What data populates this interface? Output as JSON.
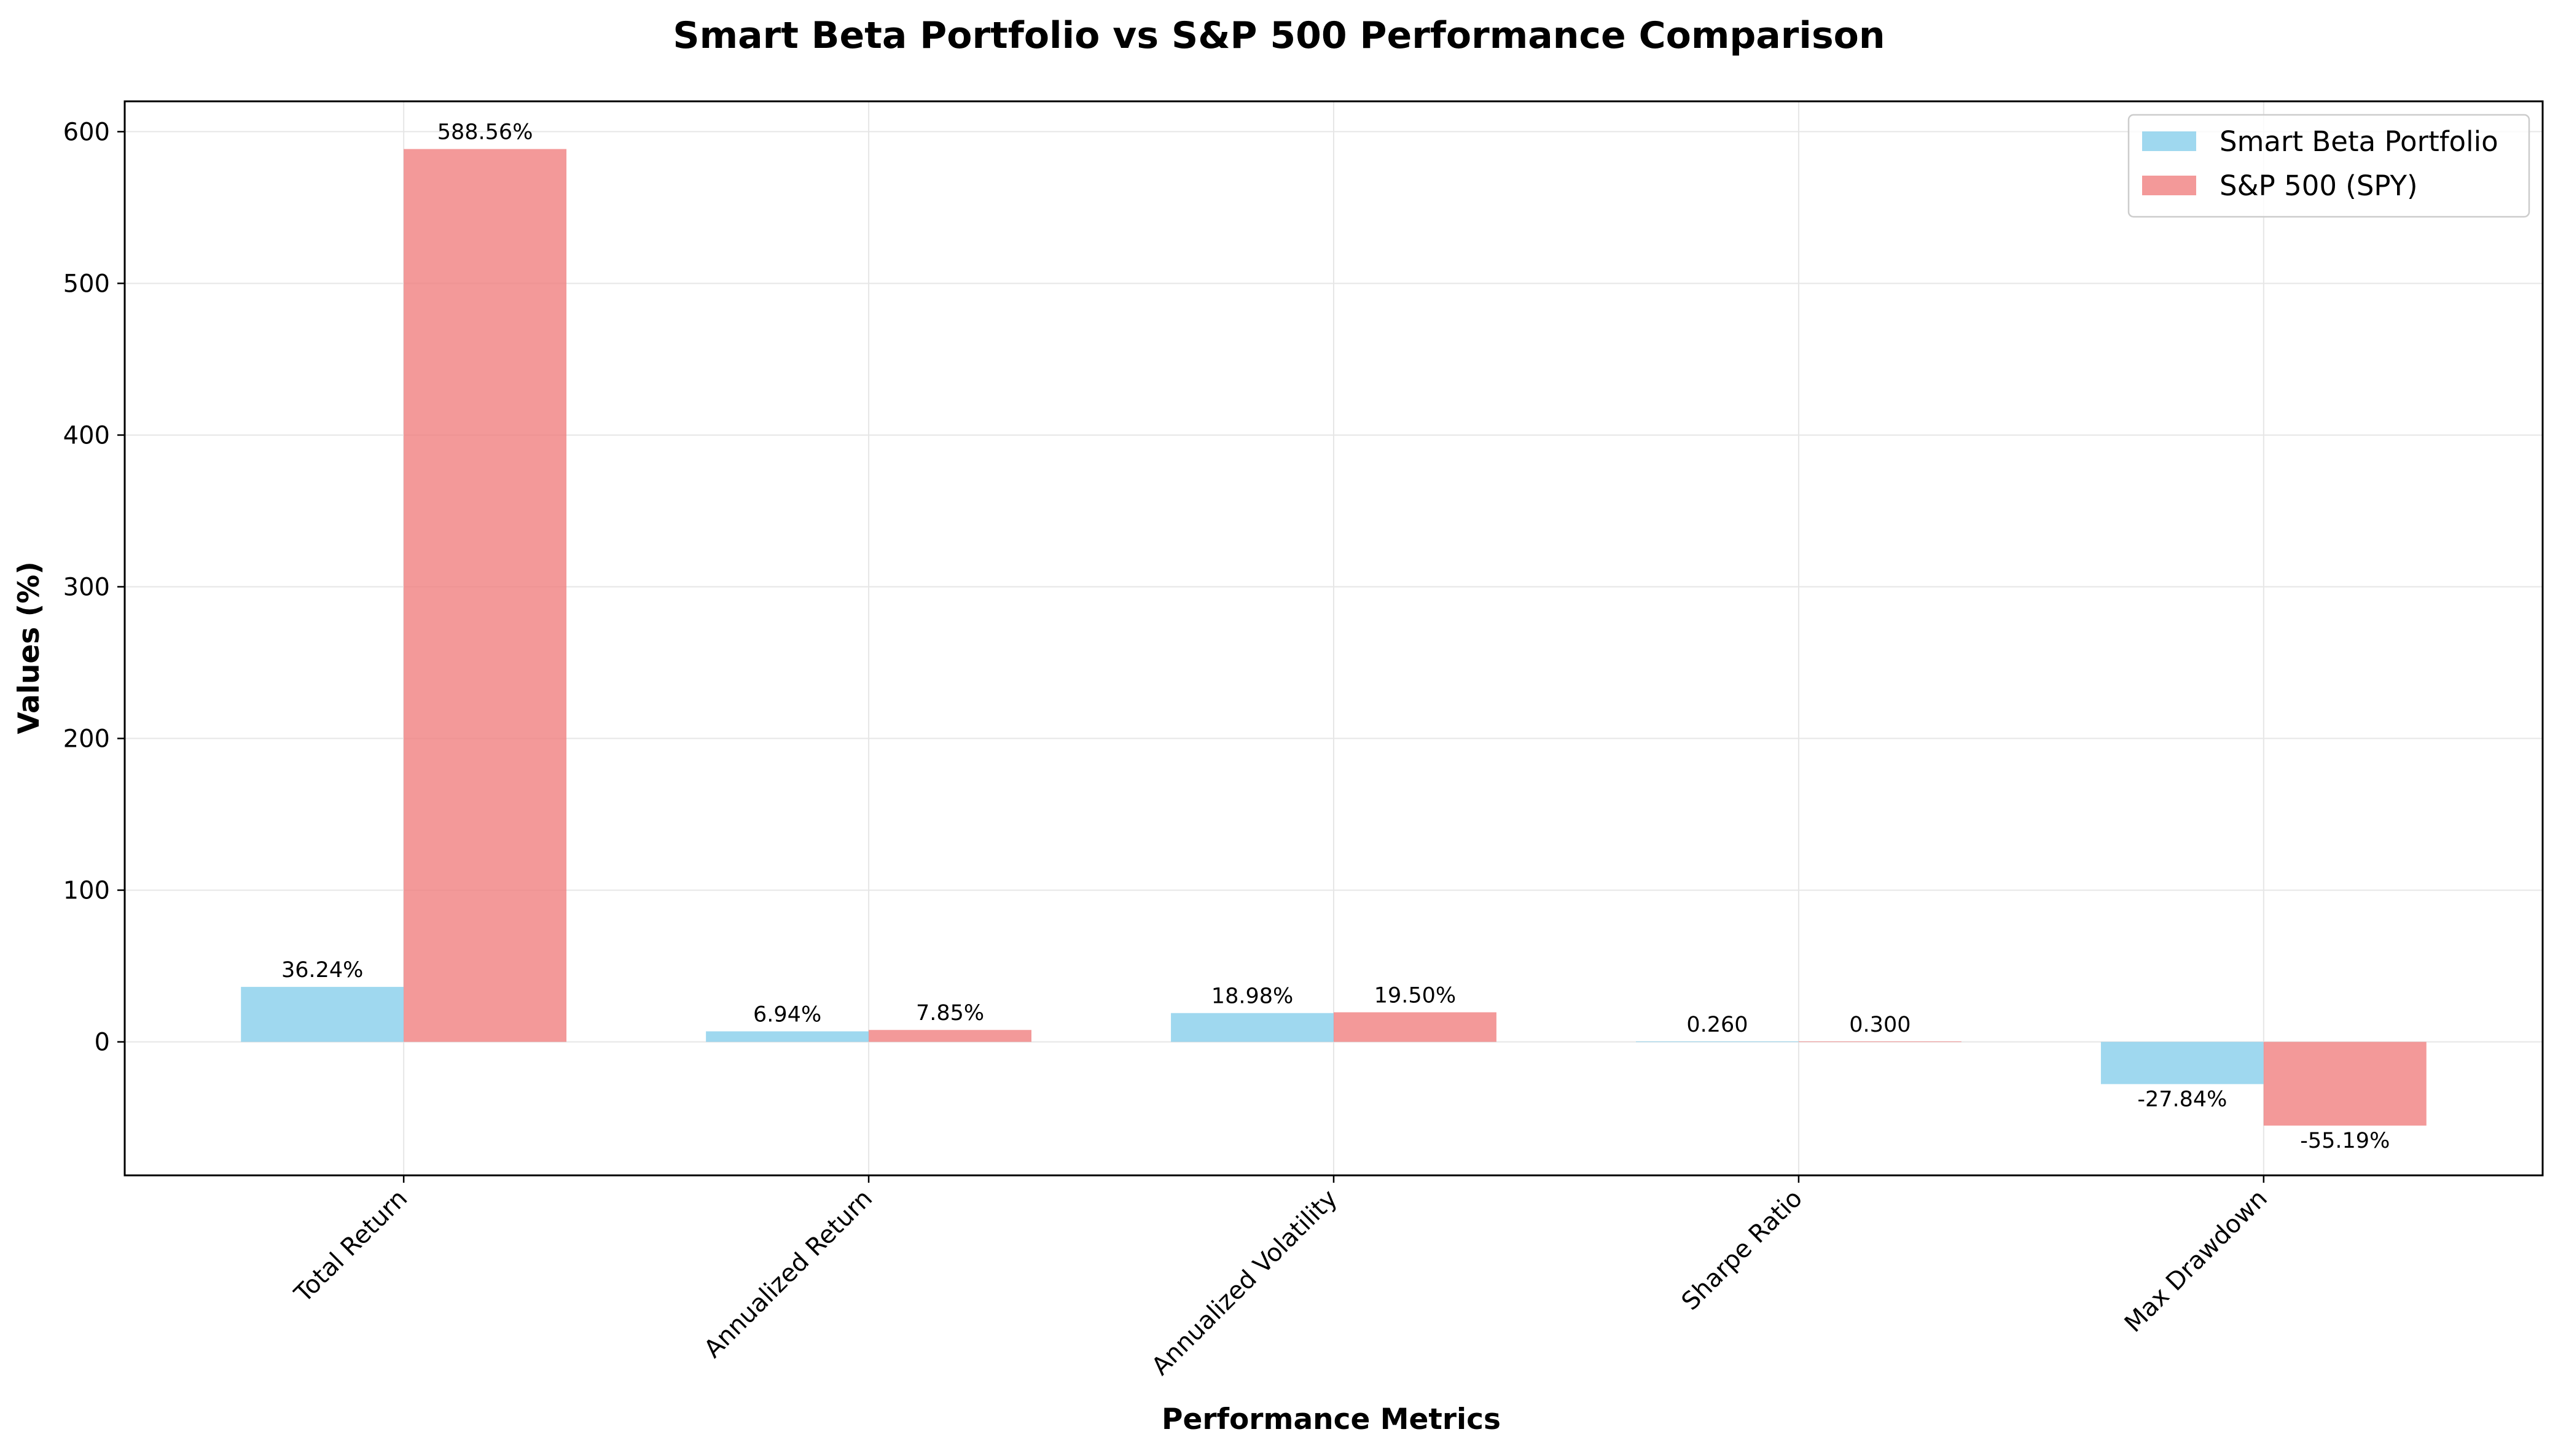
{
  "chart_data": {
    "type": "bar",
    "title": "Smart Beta Portfolio vs S&P 500 Performance Comparison",
    "xlabel": "Performance Metrics",
    "ylabel": "Values (%)",
    "ylim": [
      -88,
      620
    ],
    "yticks": [
      0,
      100,
      200,
      300,
      400,
      500,
      600
    ],
    "grid": true,
    "legend_position": "top-right",
    "categories": [
      "Total Return",
      "Annualized Return",
      "Annualized Volatility",
      "Sharpe Ratio",
      "Max Drawdown"
    ],
    "series": [
      {
        "name": "Smart Beta Portfolio",
        "color": "#87CEEB",
        "values": [
          36.24,
          6.94,
          18.98,
          0.26,
          -27.84
        ],
        "labels": [
          "36.24%",
          "6.94%",
          "18.98%",
          "0.260",
          "-27.84%"
        ]
      },
      {
        "name": "S&P 500 (SPY)",
        "color": "#F08080",
        "values": [
          588.56,
          7.85,
          19.5,
          0.3,
          -55.19
        ],
        "labels": [
          "588.56%",
          "7.85%",
          "19.50%",
          "0.300",
          "-55.19%"
        ]
      }
    ]
  }
}
